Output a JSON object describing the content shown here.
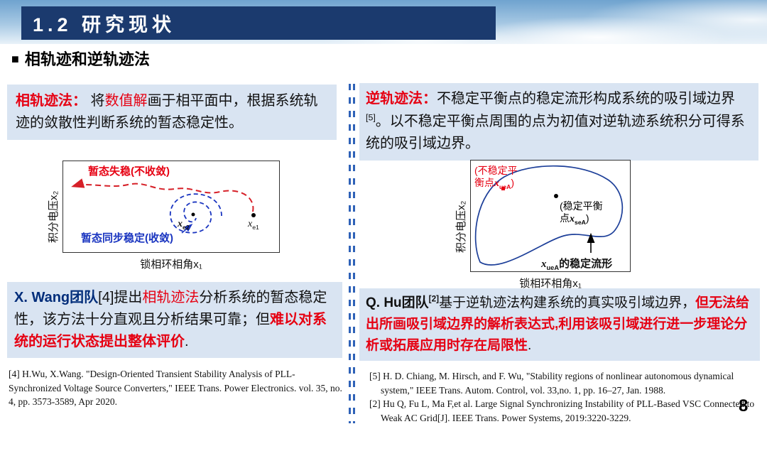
{
  "header": {
    "title": "1.2 研究现状"
  },
  "section": {
    "bullet": "■",
    "title": "相轨迹和逆轨迹法"
  },
  "left": {
    "definition": [
      {
        "t": "相轨迹法：",
        "c": "red bold"
      },
      {
        "t": " 将",
        "c": ""
      },
      {
        "t": "数值解",
        "c": "red"
      },
      {
        "t": "画于相平面中，根据系统轨迹的敛散性判断系统的暂态稳定性。",
        "c": ""
      }
    ],
    "figure": {
      "ylabel": "积分电压x₂",
      "xlabel": "锁相环相角x₁",
      "label_unstable": "暂态失稳(不收敛)",
      "label_stable": "暂态同步稳定(收敛)",
      "xe2": [
        {
          "t": "x",
          "c": "it bold"
        },
        {
          "t": "e2",
          "c": "bold",
          "sub": true
        }
      ],
      "xe1": [
        {
          "t": "x",
          "c": "it"
        },
        {
          "t": "e1",
          "sub": true
        }
      ]
    },
    "summary": [
      {
        "t": "X. Wang团队",
        "c": "navy bold"
      },
      {
        "t": "[4]",
        "c": ""
      },
      {
        "t": "提出",
        "c": ""
      },
      {
        "t": "相轨迹法",
        "c": "red"
      },
      {
        "t": "分析系统的暂态稳定性，该方法十分直观且分析结果可靠；但",
        "c": ""
      },
      {
        "t": "难以对系统的运行状态提出整体评价",
        "c": "red bold"
      },
      {
        "t": ".",
        "c": ""
      }
    ],
    "reference": "[4] H.Wu, X.Wang. \"Design-Oriented Transient Stability Analysis of PLL-Synchronized Voltage Source Converters,\" IEEE Trans. Power Electronics. vol. 35, no. 4, pp. 3573-3589, Apr 2020."
  },
  "right": {
    "definition": [
      {
        "t": "逆轨迹法：",
        "c": "red bold"
      },
      {
        "t": "不稳定平衡点的稳定流形构成系统的吸引域边界",
        "c": ""
      },
      {
        "t": "[5]",
        "c": "",
        "sup": true
      },
      {
        "t": "。以不稳定平衡点周围的点为初值对逆轨迹系统积分可得系统的吸引域边界。",
        "c": ""
      }
    ],
    "figure": {
      "ylabel": "积分电压x₂",
      "xlabel": "锁相环相角x₁",
      "unstable_line1": "(不稳定平",
      "unstable_line2": [
        {
          "t": "衡点",
          "c": ""
        },
        {
          "t": "x",
          "c": "it bold"
        },
        {
          "t": "ueA",
          "c": "bold",
          "sub": true
        },
        {
          "t": ")",
          "c": ""
        }
      ],
      "stable_line1": "(稳定平衡",
      "stable_line2": [
        {
          "t": "点",
          "c": ""
        },
        {
          "t": "x",
          "c": "it bold"
        },
        {
          "t": "seA",
          "c": "bold",
          "sub": true
        },
        {
          "t": ")",
          "c": ""
        }
      ],
      "manifold": [
        {
          "t": "x",
          "c": "it bold"
        },
        {
          "t": "ueA",
          "c": "bold",
          "sub": true
        },
        {
          "t": "的稳定流形",
          "c": "bold"
        }
      ]
    },
    "summary": [
      {
        "t": "Q. Hu团队",
        "c": "bold"
      },
      {
        "t": "[2]",
        "c": "bold",
        "sup": true
      },
      {
        "t": "基于逆轨迹法构建系统的真实吸引域边界，",
        "c": ""
      },
      {
        "t": "但无法给出所画吸引域边界的解析表达式,利用该吸引域进行进一步理论分析或拓展应用时存在局限性",
        "c": "red bold"
      },
      {
        "t": ".",
        "c": ""
      }
    ],
    "references": [
      "[5] H. D. Chiang, M. Hirsch, and F. Wu, \"Stability regions of nonlinear autonomous dynamical system,\" IEEE Trans. Autom. Control, vol. 33,no. 1, pp. 16–27, Jan. 1988.",
      "[2] Hu Q, Fu L, Ma F,et al. Large Signal Synchronizing Instability of PLL-Based VSC Connected to Weak AC Grid[J]. IEEE Trans. Power Systems, 2019:3220-3229."
    ]
  },
  "page_number": "8"
}
